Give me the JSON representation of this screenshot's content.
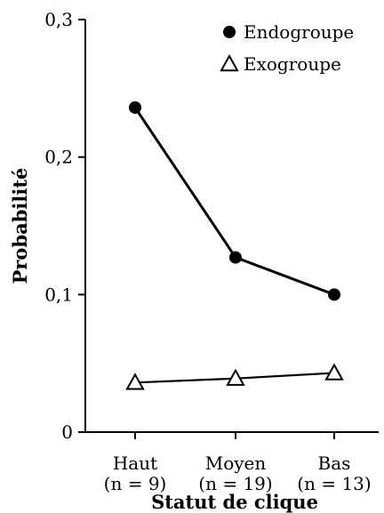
{
  "chart_data": {
    "type": "line",
    "xlabel": "Statut de clique",
    "ylabel": "Probabilité",
    "ylim": [
      0,
      0.3
    ],
    "y_ticks": [
      {
        "value": 0,
        "label": "0"
      },
      {
        "value": 0.1,
        "label": "0,1"
      },
      {
        "value": 0.2,
        "label": "0,2"
      },
      {
        "value": 0.3,
        "label": "0,3"
      }
    ],
    "categories": [
      {
        "label": "Haut",
        "sublabel": "(n = 9)"
      },
      {
        "label": "Moyen",
        "sublabel": "(n = 19)"
      },
      {
        "label": "Bas",
        "sublabel": "(n = 13)"
      }
    ],
    "series": [
      {
        "name": "Endogroupe",
        "marker": "filled-circle",
        "values": [
          0.236,
          0.127,
          0.1
        ]
      },
      {
        "name": "Exogroupe",
        "marker": "open-triangle",
        "values": [
          0.036,
          0.039,
          0.043
        ]
      }
    ],
    "legend_position": "top-right",
    "grid": false
  }
}
